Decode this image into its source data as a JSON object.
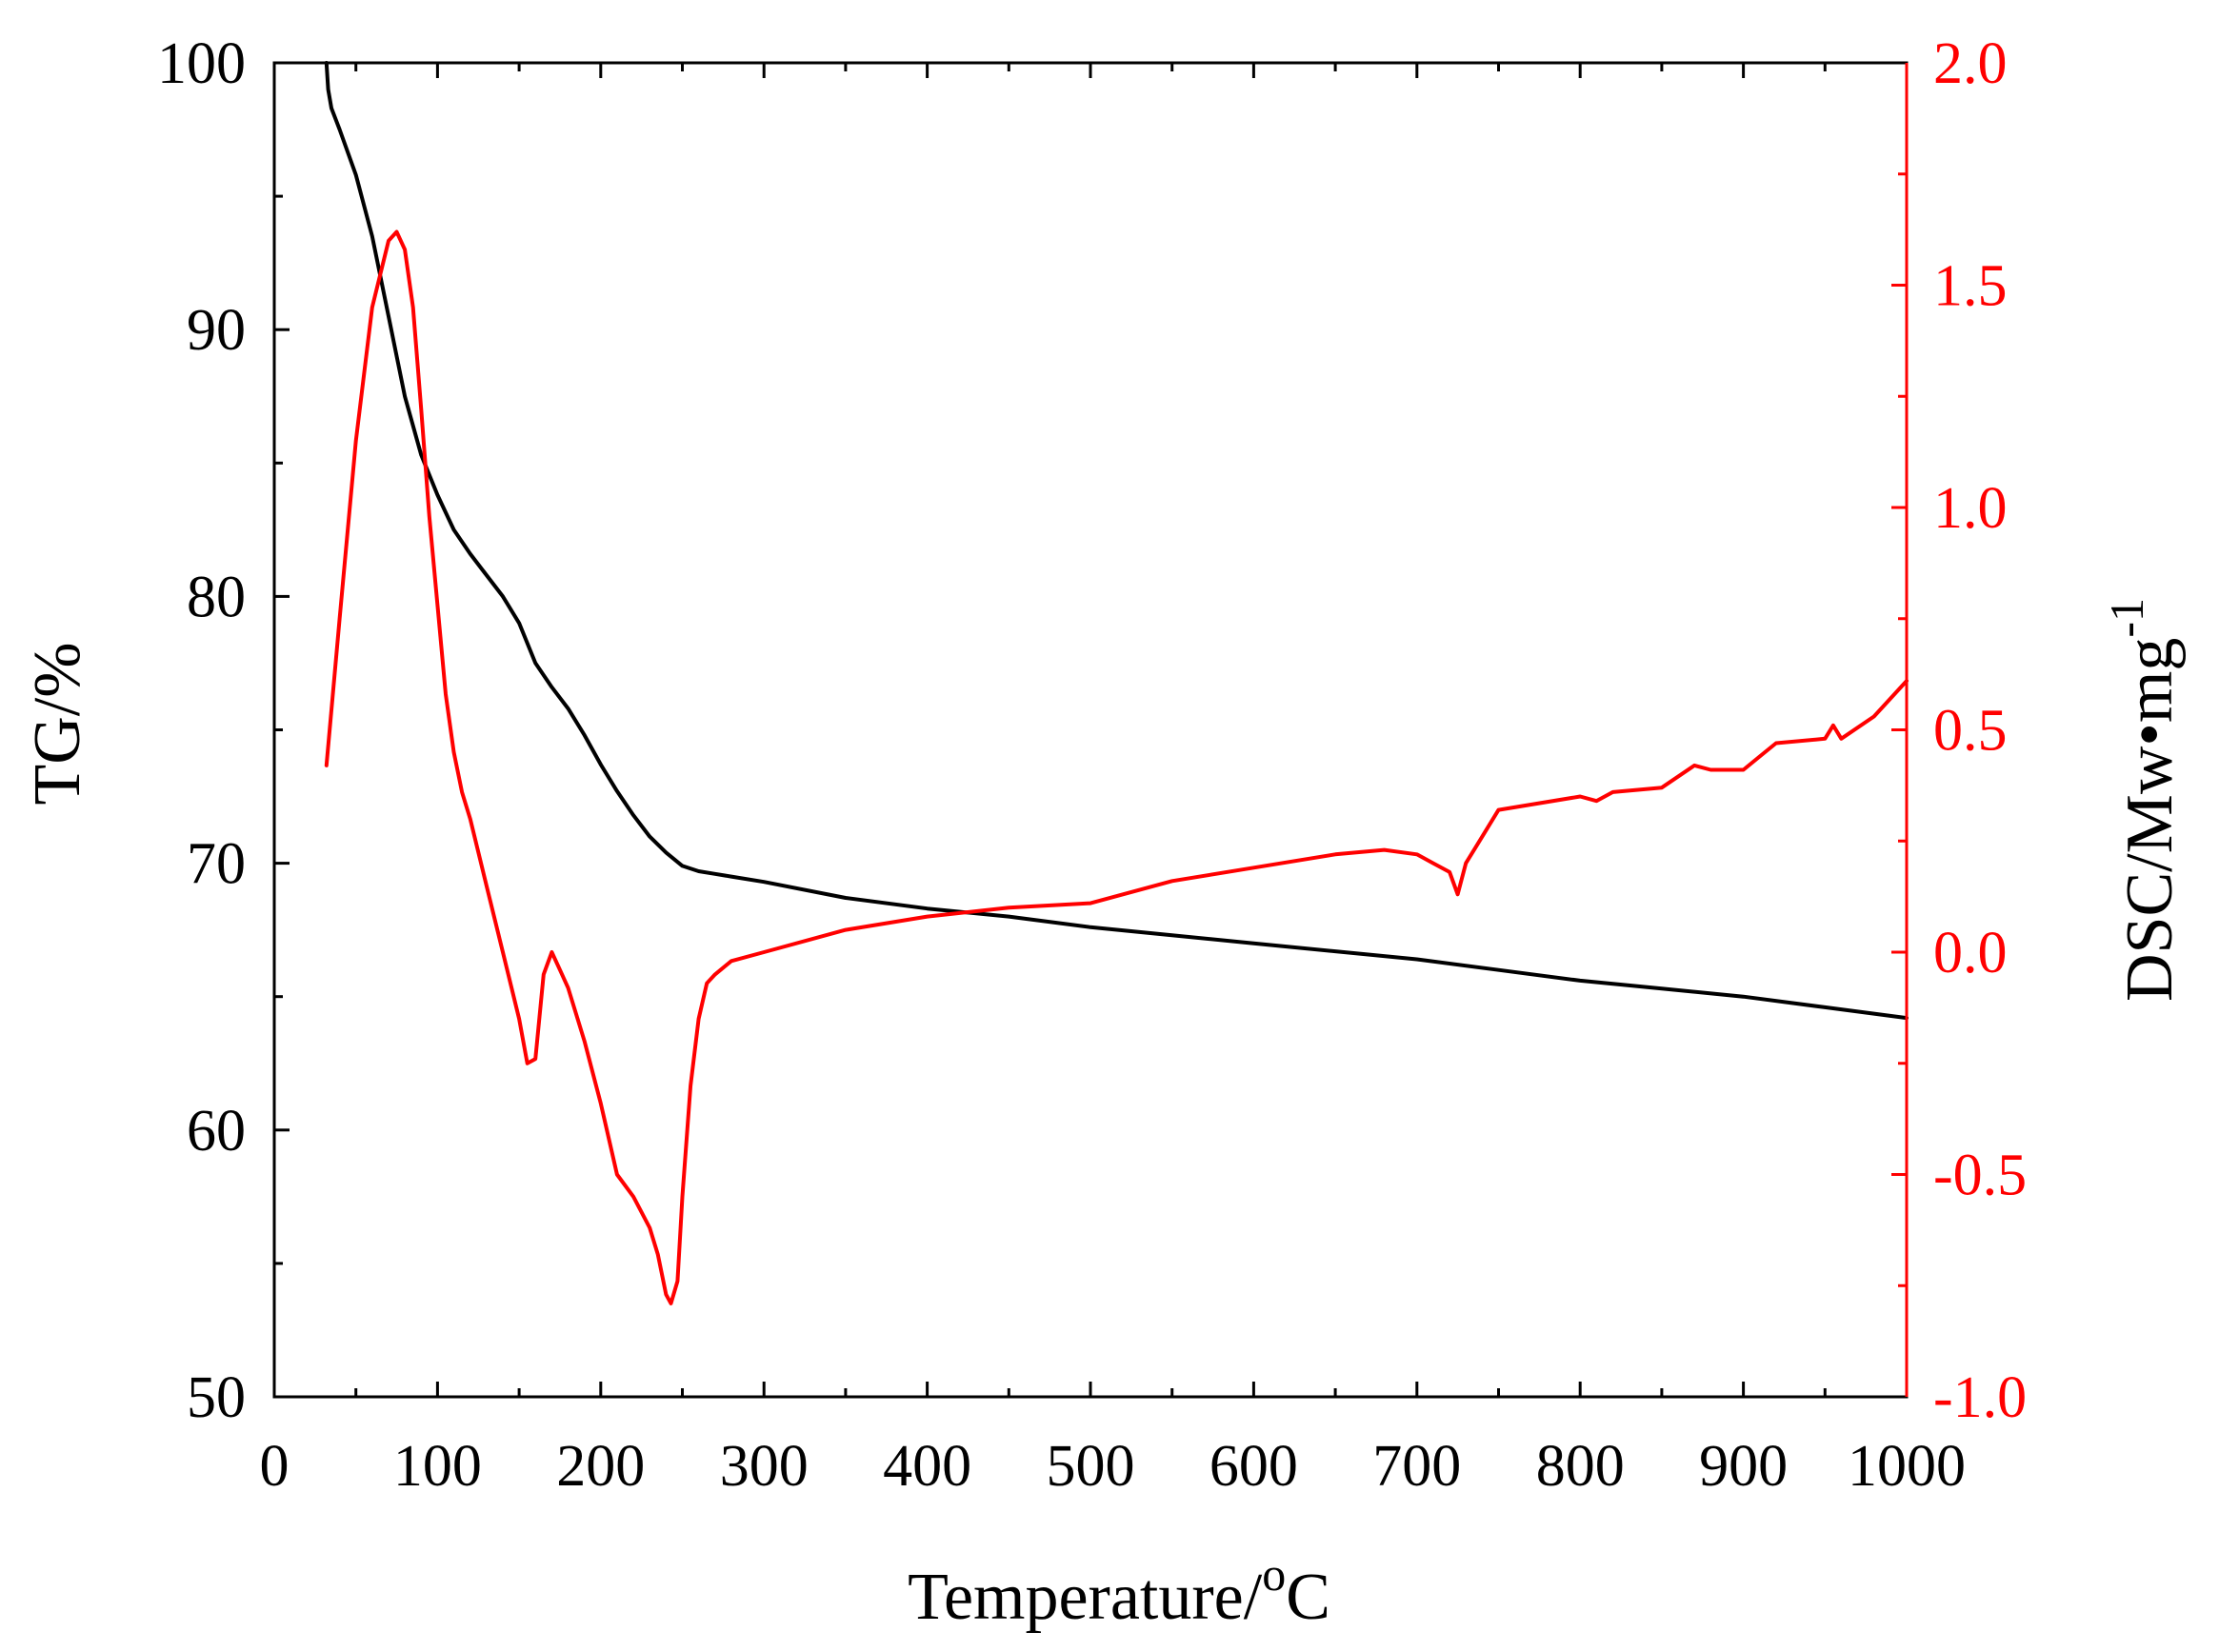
{
  "chart_data": {
    "type": "line",
    "title": "",
    "xlabel": "Temperature/",
    "xlabel_sup": "o",
    "xlabel_unit": "C",
    "ylabel_left": "TG/%",
    "ylabel_right": "DSC/Mw•mg",
    "ylabel_right_sup": "-1",
    "xlim": [
      0,
      1000
    ],
    "ylim_left": [
      50,
      100
    ],
    "ylim_right": [
      -1.0,
      2.0
    ],
    "x_ticks": [
      "0",
      "100",
      "200",
      "300",
      "400",
      "500",
      "600",
      "700",
      "800",
      "900",
      "1000"
    ],
    "y_left_ticks": [
      "50",
      "60",
      "70",
      "80",
      "90",
      "100"
    ],
    "y_right_ticks": [
      "-1.0",
      "-0.5",
      "0.0",
      "0.5",
      "1.0",
      "1.5",
      "2.0"
    ],
    "colors": {
      "tg": "#000000",
      "dsc": "#ff0000"
    },
    "series": [
      {
        "name": "TG",
        "axis": "left",
        "color": "#000000",
        "x": [
          32,
          33,
          35,
          40,
          50,
          60,
          70,
          80,
          90,
          100,
          110,
          120,
          130,
          140,
          150,
          160,
          170,
          180,
          190,
          200,
          210,
          220,
          230,
          240,
          250,
          260,
          270,
          280,
          300,
          350,
          400,
          450,
          500,
          550,
          600,
          650,
          700,
          750,
          800,
          850,
          900,
          950,
          1000
        ],
        "y": [
          100,
          99,
          98.3,
          97.5,
          95.8,
          93.5,
          90.5,
          87.5,
          85.3,
          83.8,
          82.5,
          81.6,
          80.8,
          80.0,
          79.0,
          77.5,
          76.6,
          75.8,
          74.8,
          73.7,
          72.7,
          71.8,
          71.0,
          70.4,
          69.9,
          69.7,
          69.6,
          69.5,
          69.3,
          68.7,
          68.3,
          68.0,
          67.6,
          67.3,
          67.0,
          66.7,
          66.4,
          66.0,
          65.6,
          65.3,
          65.0,
          64.6,
          64.2
        ]
      },
      {
        "name": "DSC",
        "axis": "right",
        "color": "#ff0000",
        "x": [
          32,
          40,
          50,
          60,
          70,
          75,
          80,
          85,
          90,
          95,
          100,
          105,
          110,
          115,
          120,
          130,
          140,
          150,
          155,
          160,
          165,
          170,
          175,
          180,
          190,
          200,
          210,
          220,
          230,
          235,
          240,
          243,
          247,
          250,
          255,
          260,
          265,
          270,
          280,
          300,
          350,
          400,
          450,
          500,
          550,
          600,
          650,
          680,
          700,
          710,
          720,
          725,
          730,
          740,
          750,
          800,
          810,
          820,
          850,
          870,
          880,
          900,
          910,
          920,
          950,
          955,
          960,
          980,
          1000
        ],
        "y": [
          0.42,
          0.75,
          1.15,
          1.45,
          1.6,
          1.62,
          1.58,
          1.45,
          1.22,
          0.98,
          0.78,
          0.58,
          0.45,
          0.36,
          0.3,
          0.15,
          0.0,
          -0.15,
          -0.25,
          -0.24,
          -0.05,
          0.0,
          -0.04,
          -0.08,
          -0.2,
          -0.34,
          -0.5,
          -0.55,
          -0.62,
          -0.68,
          -0.77,
          -0.79,
          -0.74,
          -0.55,
          -0.3,
          -0.15,
          -0.07,
          -0.05,
          -0.02,
          0.0,
          0.05,
          0.08,
          0.1,
          0.11,
          0.16,
          0.19,
          0.22,
          0.23,
          0.22,
          0.2,
          0.18,
          0.13,
          0.2,
          0.26,
          0.32,
          0.35,
          0.34,
          0.36,
          0.37,
          0.42,
          0.41,
          0.41,
          0.44,
          0.47,
          0.48,
          0.51,
          0.48,
          0.53,
          0.61
        ]
      }
    ]
  }
}
